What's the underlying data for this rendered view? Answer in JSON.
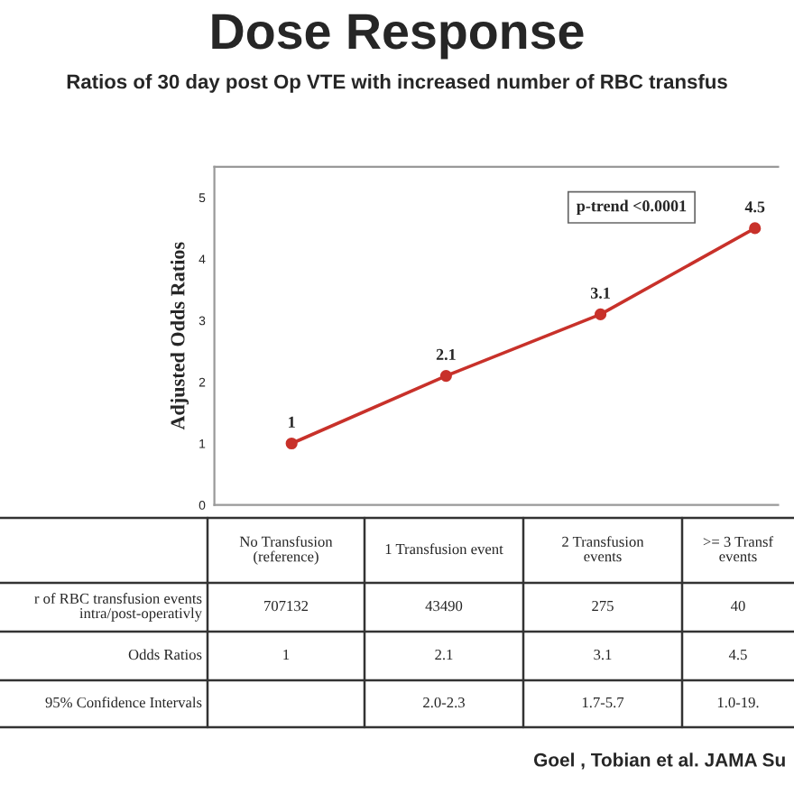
{
  "chart_data": {
    "type": "line",
    "title": "Dose Response",
    "subtitle": "Ratios of 30 day post Op VTE with increased number of RBC transfus",
    "ylabel": "Adjusted Odds Ratios",
    "categories": [
      "No Transfusion\n(reference)",
      "1 Transfusion event",
      "2 Transfusion\nevents",
      ">= 3 Transf\nevents"
    ],
    "series": [
      {
        "color": "#c8312a",
        "values": [
          1,
          2.1,
          3.1,
          4.5
        ],
        "value_labels": [
          "1",
          "2.1",
          "3.1",
          "4.5"
        ]
      }
    ],
    "ylim": [
      0,
      5.5
    ],
    "yticks": [
      0,
      1,
      2,
      3,
      4,
      5
    ],
    "grid": false,
    "marker": "circle",
    "line_style": "solid",
    "annotations": [
      "p-trend <0.0001",
      "r of RBC transfusion events\nintra/post-operativly",
      "707132",
      "43490",
      "275",
      "40",
      "Odds Ratios",
      "95% Confidence Intervals",
      "2.0-2.3",
      "1.7-5.7",
      "1.0-19.",
      "Goel , Tobian et al. JAMA Su"
    ]
  }
}
